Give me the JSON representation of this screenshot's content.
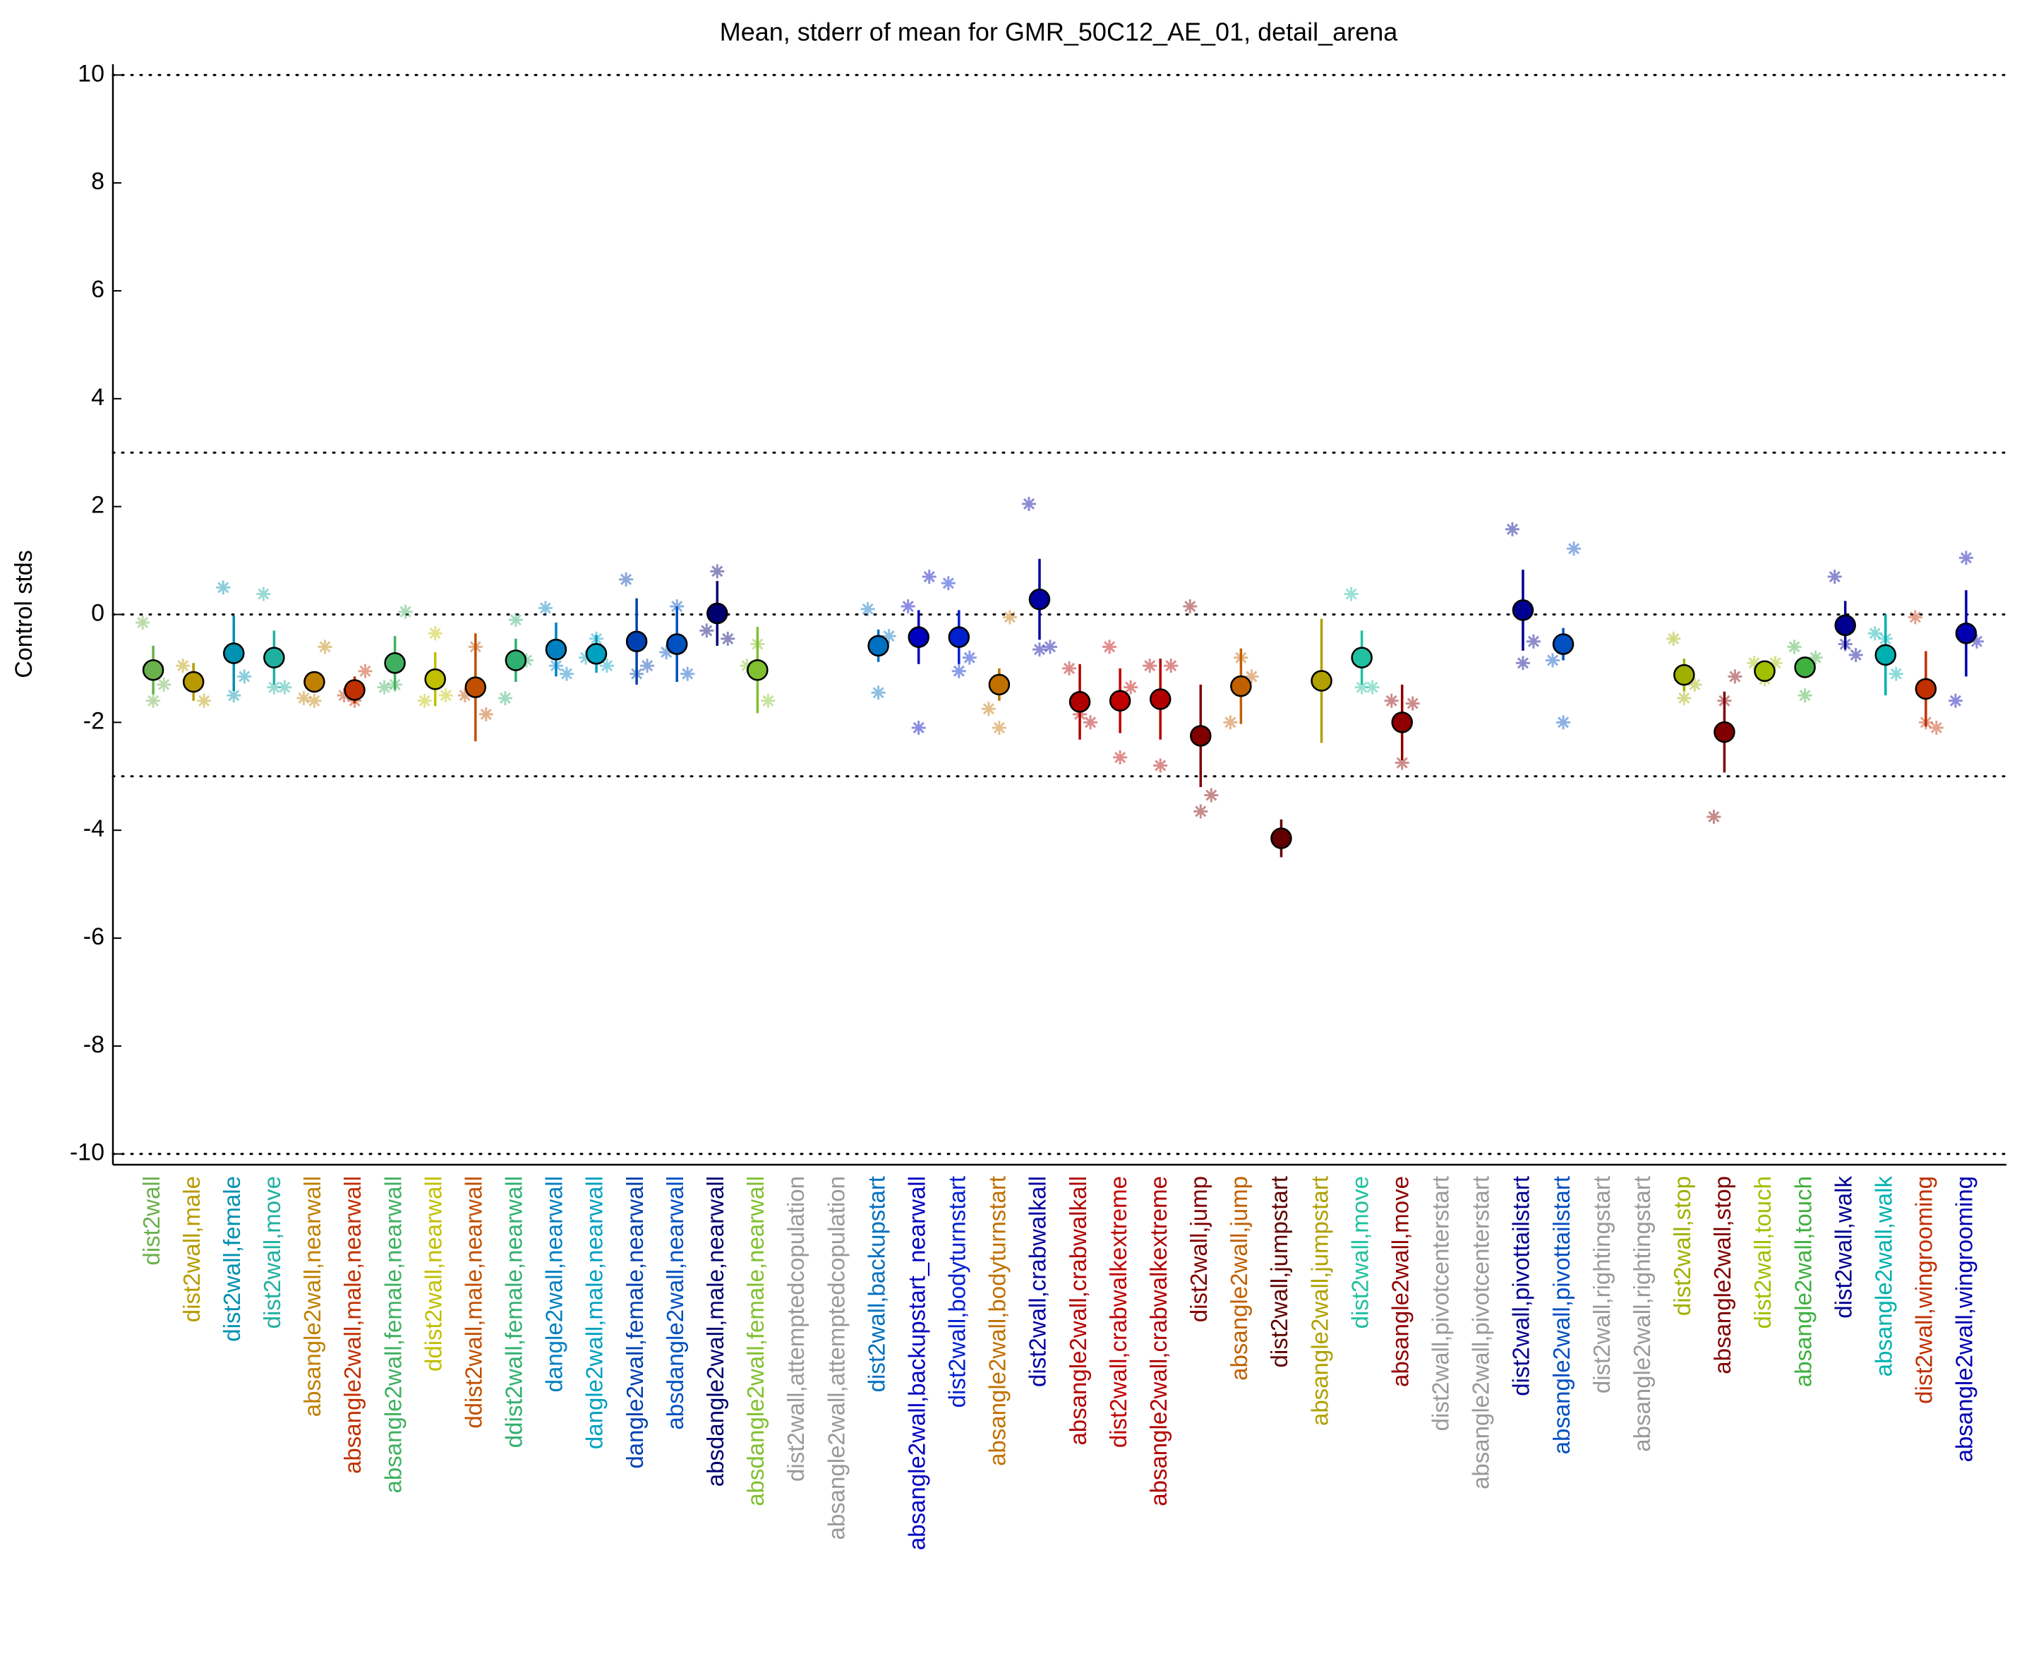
{
  "chart_data": {
    "type": "errorbar",
    "title": "Mean, stderr of mean for GMR_50C12_AE_01, detail_arena",
    "y_label": "Control stds",
    "categories": [
      "dist2wall",
      "dist2wall,male",
      "dist2wall,female",
      "dist2wall,move",
      "absangle2wall,nearwall",
      "absangle2wall,male,nearwall",
      "absangle2wall,female,nearwall",
      "ddist2wall,nearwall",
      "ddist2wall,male,nearwall",
      "ddist2wall,female,nearwall",
      "dangle2wall,nearwall",
      "dangle2wall,male,nearwall",
      "dangle2wall,female,nearwall",
      "absdangle2wall,nearwall",
      "absdangle2wall,male,nearwall",
      "absdangle2wall,female,nearwall",
      "dist2wall,attemptedcopulation",
      "absangle2wall,attemptedcopulation",
      "dist2wall,backupstart",
      "absangle2wall,backupstart_nearwall",
      "dist2wall,bodyturnstart",
      "absangle2wall,bodyturnstart",
      "dist2wall,crabwalkall",
      "absangle2wall,crabwalkall",
      "dist2wall,crabwalkextreme",
      "absangle2wall,crabwalkextreme",
      "dist2wall,jump",
      "absangle2wall,jump",
      "dist2wall,jumpstart",
      "absangle2wall,jumpstart",
      "dist2wall,move",
      "absangle2wall,move",
      "dist2wall,pivotcenterstart",
      "absangle2wall,pivotcenterstart",
      "dist2wall,pivottailstart",
      "absangle2wall,pivottailstart",
      "dist2wall,rightingstart",
      "absangle2wall,rightingstart",
      "dist2wall,stop",
      "absangle2wall,stop",
      "dist2wall,touch",
      "absangle2wall,touch",
      "dist2wall,walk",
      "absangle2wall,walk",
      "dist2wall,wingrooming",
      "absangle2wall,wingrooming"
    ],
    "values": [
      -1.03,
      -1.25,
      -0.72,
      -0.8,
      -1.25,
      -1.4,
      -0.9,
      -1.2,
      -1.35,
      -0.85,
      -0.65,
      -0.73,
      -0.5,
      -0.55,
      0.02,
      -1.03,
      null,
      null,
      -0.58,
      -0.42,
      -0.42,
      -1.3,
      0.28,
      -1.62,
      -1.6,
      -1.57,
      -2.25,
      -1.33,
      -4.15,
      -1.23,
      -0.8,
      -2.0,
      null,
      null,
      0.08,
      -0.55,
      null,
      null,
      -1.12,
      -2.18,
      -1.05,
      -0.98,
      -0.2,
      -0.75,
      -1.38,
      -0.35
    ],
    "errors": [
      0.45,
      0.35,
      0.7,
      0.5,
      0.2,
      0.25,
      0.5,
      0.5,
      1.0,
      0.4,
      0.5,
      0.35,
      0.8,
      0.7,
      0.6,
      0.8,
      null,
      null,
      0.3,
      0.5,
      0.5,
      0.3,
      0.75,
      0.7,
      0.6,
      0.75,
      0.95,
      0.7,
      0.35,
      1.15,
      0.5,
      0.7,
      null,
      null,
      0.75,
      0.3,
      null,
      null,
      0.3,
      0.75,
      0.2,
      0.2,
      0.45,
      0.75,
      0.7,
      0.8
    ],
    "points": [
      [
        -0.15,
        -1.6,
        -1.3
      ],
      [
        -0.95,
        -1.3,
        -1.6
      ],
      [
        0.5,
        -1.5,
        -1.15
      ],
      [
        0.38,
        -1.35,
        -1.35
      ],
      [
        -1.55,
        -1.6,
        -0.6
      ],
      [
        -1.5,
        -1.6,
        -1.05
      ],
      [
        -1.35,
        -1.3,
        0.05
      ],
      [
        -1.6,
        -0.35,
        -1.5
      ],
      [
        -1.5,
        -0.6,
        -1.85
      ],
      [
        -1.55,
        -0.1,
        -0.85
      ],
      [
        0.12,
        -0.95,
        -1.1
      ],
      [
        -0.8,
        -0.45,
        -0.95
      ],
      [
        0.65,
        -1.1,
        -0.95
      ],
      [
        -0.7,
        0.15,
        -1.1
      ],
      [
        -0.3,
        0.8,
        -0.45
      ],
      [
        -0.95,
        -0.55,
        -1.6
      ],
      null,
      null,
      [
        0.1,
        -1.45,
        -0.4
      ],
      [
        0.15,
        -2.1,
        0.7
      ],
      [
        0.58,
        -1.05,
        -0.8
      ],
      [
        -1.75,
        -2.1,
        -0.05
      ],
      [
        2.05,
        -0.65,
        -0.6
      ],
      [
        -1.0,
        -1.85,
        -2.0
      ],
      [
        -0.6,
        -2.65,
        -1.35
      ],
      [
        -0.95,
        -2.8,
        -0.95
      ],
      [
        0.15,
        -3.65,
        -3.35
      ],
      [
        -2.0,
        -0.8,
        -1.15
      ],
      null,
      null,
      [
        0.38,
        -1.35,
        -1.35
      ],
      [
        -1.6,
        -2.75,
        -1.65
      ],
      null,
      null,
      [
        1.58,
        -0.9,
        -0.5
      ],
      [
        -0.85,
        -2.0,
        1.22
      ],
      null,
      null,
      [
        -0.45,
        -1.55,
        -1.3
      ],
      [
        -3.75,
        -1.6,
        -1.15
      ],
      [
        -0.9,
        -1.2,
        -0.9
      ],
      [
        -0.6,
        -1.5,
        -0.8
      ],
      [
        0.7,
        -0.55,
        -0.75
      ],
      [
        -0.35,
        -0.45,
        -1.1
      ],
      [
        -0.05,
        -2.0,
        -2.1
      ],
      [
        -1.6,
        1.05,
        -0.5
      ]
    ],
    "colors": [
      "#6ab04c",
      "#b89a00",
      "#0090b0",
      "#20b0a0",
      "#c08000",
      "#c03000",
      "#40b060",
      "#c0c000",
      "#c05000",
      "#30b070",
      "#0080c0",
      "#00a0c0",
      "#0040b0",
      "#0050c0",
      "#000070",
      "#80c030",
      "#999999",
      "#999999",
      "#0070c0",
      "#0000c0",
      "#0020d0",
      "#c07000",
      "#0000a0",
      "#b00000",
      "#c00000",
      "#b00000",
      "#800000",
      "#c06000",
      "#600000",
      "#b0a000",
      "#20c0a0",
      "#900000",
      "#999999",
      "#999999",
      "#000090",
      "#0050c0",
      "#999999",
      "#999999",
      "#a0b000",
      "#800000",
      "#a0c000",
      "#40b040",
      "#000090",
      "#00b0b0",
      "#c03000",
      "#0000b0"
    ],
    "ylim": [
      -10.2,
      10.2
    ],
    "yticks": [
      -10,
      -8,
      -6,
      -4,
      -2,
      0,
      2,
      4,
      6,
      8,
      10
    ],
    "hlines": [
      10,
      3,
      0,
      -3,
      -10
    ]
  }
}
